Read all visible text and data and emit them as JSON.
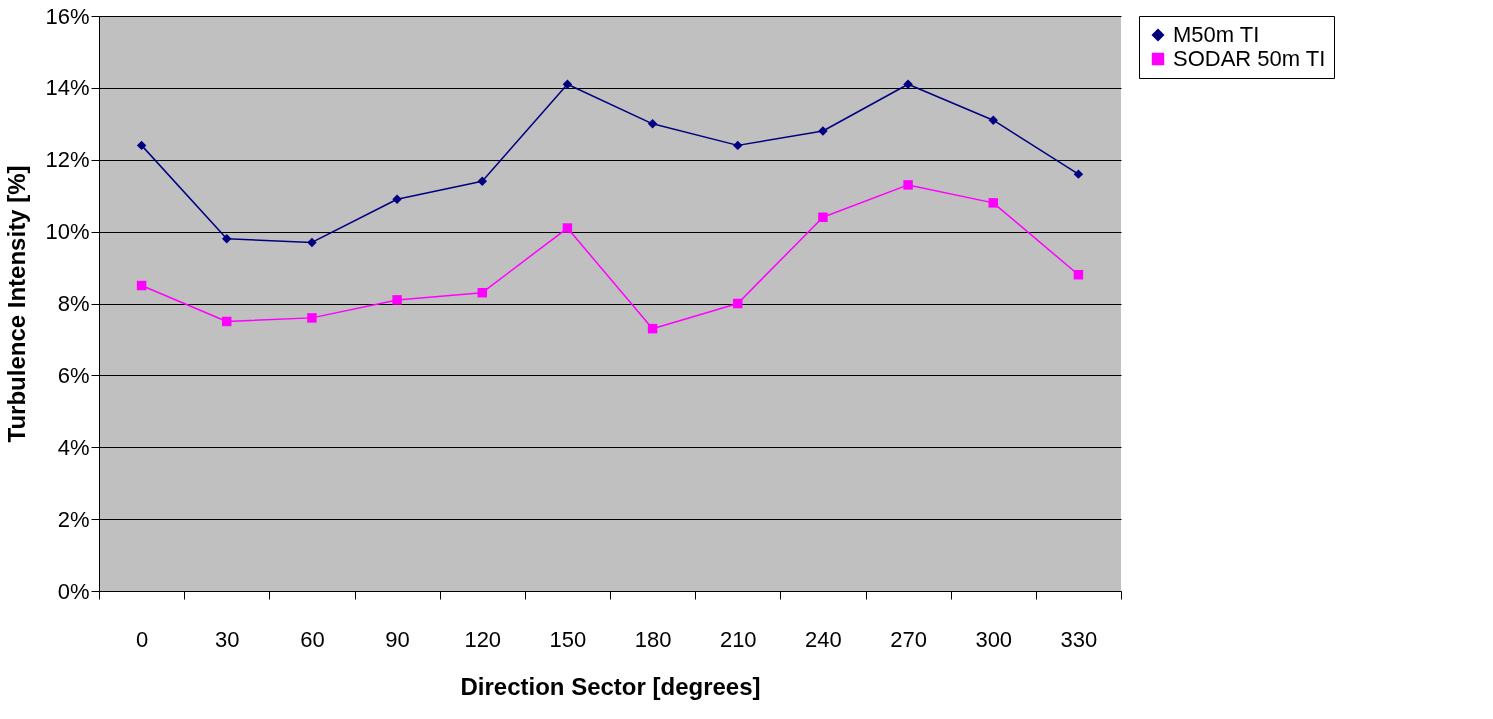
{
  "chart_data": {
    "type": "line",
    "xlabel": "Direction Sector [degrees]",
    "ylabel": "Turbulence Intensity [%]",
    "categories": [
      "0",
      "30",
      "60",
      "90",
      "120",
      "150",
      "180",
      "210",
      "240",
      "270",
      "300",
      "330"
    ],
    "series": [
      {
        "name": "M50m TI",
        "color": "#000080",
        "marker": "diamond",
        "values": [
          12.4,
          9.8,
          9.7,
          10.9,
          11.4,
          14.1,
          13.0,
          12.4,
          12.8,
          14.1,
          13.1,
          11.6
        ]
      },
      {
        "name": "SODAR 50m TI",
        "color": "#ff00ff",
        "marker": "square",
        "values": [
          8.5,
          7.5,
          7.6,
          8.1,
          8.3,
          10.1,
          7.3,
          8.0,
          10.4,
          11.3,
          10.8,
          8.8
        ]
      }
    ],
    "ylim": [
      0,
      16
    ],
    "yticks": [
      {
        "value": 0,
        "label": "0%"
      },
      {
        "value": 2,
        "label": "2%"
      },
      {
        "value": 4,
        "label": "4%"
      },
      {
        "value": 6,
        "label": "6%"
      },
      {
        "value": 8,
        "label": "8%"
      },
      {
        "value": 10,
        "label": "10%"
      },
      {
        "value": 12,
        "label": "12%"
      },
      {
        "value": 14,
        "label": "14%"
      },
      {
        "value": 16,
        "label": "16%"
      }
    ],
    "grid": "y",
    "legend": "right",
    "line_style": "solid"
  }
}
